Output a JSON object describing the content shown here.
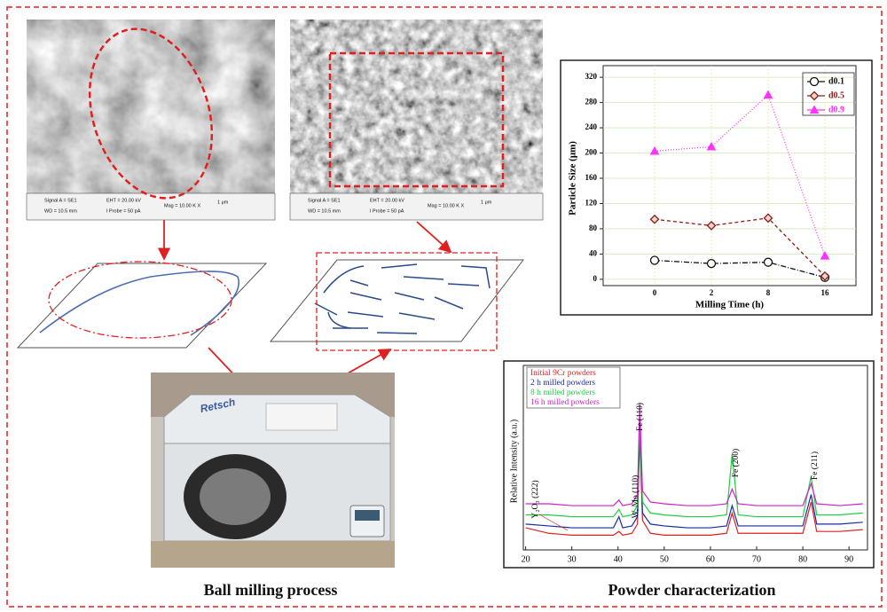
{
  "sem_images": [
    {
      "info": [
        "Signal A = SE1",
        "WD = 10.5 mm",
        "EHT = 20.00 kV",
        "I Probe = 50 pA",
        "Mag = 10.00 K X",
        "1 μm"
      ]
    },
    {
      "info": [
        "Signal A = SE1",
        "WD = 10.5 mm",
        "EHT = 20.00 kV",
        "I Probe = 50 pA",
        "Mag = 10.00 K X",
        "1 μm"
      ]
    }
  ],
  "photo": {
    "brand": "Retsch"
  },
  "captions": [
    "Ball milling process",
    "Powder characterization"
  ],
  "chart_data": [
    {
      "type": "line",
      "xlabel": "Milling Time (h)",
      "ylabel": "Particle Size (μm)",
      "categories": [
        "0",
        "2",
        "8",
        "16"
      ],
      "series": [
        {
          "name": "d0.1",
          "color": "#111111",
          "marker": "circle",
          "dash": "6 2 1 2",
          "values": [
            30,
            25,
            27,
            3
          ]
        },
        {
          "name": "d0.5",
          "color": "#8b1a1a",
          "marker": "diamond",
          "dash": "4 3",
          "values": [
            95,
            85,
            97,
            5
          ]
        },
        {
          "name": "d0.9",
          "color": "#ff33ff",
          "marker": "triangle",
          "dash": "1 2",
          "values": [
            203,
            210,
            292,
            37
          ]
        }
      ],
      "ylim": [
        -10,
        330
      ],
      "yticks": [
        0,
        40,
        80,
        120,
        160,
        200,
        240,
        280,
        320
      ],
      "grid": true,
      "legend": "top-right"
    },
    {
      "type": "line",
      "ylabel": "Relative Intensity (a.u.)",
      "x": [
        20,
        25,
        30,
        35,
        39,
        40.2,
        41,
        43,
        44.2,
        44.7,
        45.3,
        47,
        50,
        55,
        60,
        63.5,
        64.7,
        66,
        70,
        75,
        80,
        81.8,
        83,
        88,
        93
      ],
      "series": [
        {
          "name": "Initial 9Cr powders",
          "color": "#e02020",
          "values": [
            12,
            9,
            8,
            8,
            8,
            10,
            8,
            9,
            14,
            62,
            16,
            9,
            8,
            8,
            8,
            9,
            20,
            9,
            9,
            9,
            9,
            26,
            10,
            10,
            11
          ]
        },
        {
          "name": "2 h milled powders",
          "color": "#1a2aa0",
          "values": [
            14,
            13,
            12,
            12,
            12,
            18,
            12,
            13,
            18,
            67,
            20,
            14,
            13,
            12,
            12,
            13,
            24,
            13,
            13,
            13,
            13,
            30,
            14,
            14,
            15
          ]
        },
        {
          "name": "8 h milled powders",
          "color": "#22cc44",
          "values": [
            19,
            19,
            18,
            18,
            18,
            22,
            18,
            19,
            24,
            69,
            26,
            20,
            19,
            18,
            18,
            19,
            52,
            19,
            18,
            18,
            18,
            40,
            19,
            19,
            20
          ]
        },
        {
          "name": "16 h milled powders",
          "color": "#cc22cc",
          "values": [
            25,
            25,
            24,
            24,
            24,
            27,
            24,
            25,
            30,
            79,
            32,
            26,
            25,
            24,
            24,
            25,
            33,
            25,
            24,
            24,
            24,
            36,
            25,
            24,
            25
          ]
        }
      ],
      "annotations": [
        "Y₂O₃ (222)",
        "W, Mo (110)",
        "Fe (110)",
        "Fe (200)",
        "Fe (211)"
      ],
      "xlim": [
        19.5,
        94
      ],
      "xticks": [
        20,
        30,
        40,
        50,
        60,
        70,
        80,
        90
      ],
      "ylim": [
        0,
        100
      ],
      "legend": "top-left"
    }
  ]
}
